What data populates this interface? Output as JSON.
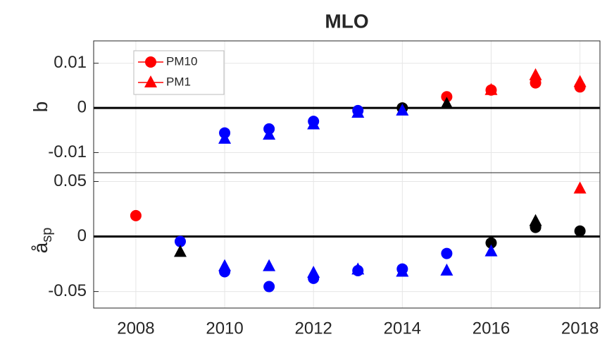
{
  "chart_data": [
    {
      "type": "scatter",
      "title": "MLO",
      "ylabel": "b",
      "x": [
        2008,
        2009,
        2010,
        2011,
        2012,
        2013,
        2014,
        2015,
        2016,
        2017,
        2018
      ],
      "xlim": [
        2007.05,
        2018.45
      ],
      "xticks": [
        2008,
        2010,
        2012,
        2014,
        2016,
        2018
      ],
      "ylim": [
        -0.0145,
        0.015
      ],
      "yticks": [
        -0.01,
        0,
        0.01
      ],
      "grid": true,
      "zero_line": true,
      "legend": "upper left",
      "series": [
        {
          "name": "PM10",
          "marker": "circle",
          "color": "#ff0000",
          "colors": [
            null,
            null,
            "#0000ff",
            "#0000ff",
            "#0000ff",
            "#0000ff",
            "#000000",
            "#ff0000",
            "#ff0000",
            "#ff0000",
            "#ff0000"
          ],
          "values": [
            null,
            null,
            -0.0056,
            -0.0047,
            -0.003,
            -0.0006,
            0.0,
            0.0025,
            0.004,
            0.0056,
            0.0047
          ]
        },
        {
          "name": "PM1",
          "marker": "triangle",
          "color": "#ff0000",
          "colors": [
            null,
            null,
            "#0000ff",
            "#0000ff",
            "#0000ff",
            "#0000ff",
            "#0000ff",
            "#000000",
            "#ff0000",
            "#ff0000",
            "#ff0000"
          ],
          "values": [
            null,
            null,
            -0.0069,
            -0.006,
            -0.0037,
            -0.0011,
            -0.0006,
            0.0009,
            0.004,
            0.0073,
            0.0058
          ]
        }
      ]
    },
    {
      "type": "scatter",
      "ylabel": "å",
      "ylabel_subscript": "sp",
      "x": [
        2008,
        2009,
        2010,
        2011,
        2012,
        2013,
        2014,
        2015,
        2016,
        2017,
        2018
      ],
      "xlim": [
        2007.05,
        2018.45
      ],
      "xticks": [
        2008,
        2010,
        2012,
        2014,
        2016,
        2018
      ],
      "ylim": [
        -0.065,
        0.058
      ],
      "yticks": [
        -0.05,
        0,
        0.05
      ],
      "grid": true,
      "zero_line": true,
      "series": [
        {
          "marker": "circle",
          "colors": [
            "#ff0000",
            "#0000ff",
            "#0000ff",
            "#0000ff",
            "#0000ff",
            "#0000ff",
            "#0000ff",
            "#0000ff",
            "#000000",
            "#000000",
            "#000000"
          ],
          "values": [
            0.019,
            -0.0045,
            -0.032,
            -0.0455,
            -0.038,
            -0.031,
            -0.0295,
            -0.0154,
            -0.0058,
            0.0083,
            0.005
          ]
        },
        {
          "marker": "triangle",
          "colors": [
            null,
            "#000000",
            "#0000ff",
            "#0000ff",
            "#0000ff",
            "#0000ff",
            "#0000ff",
            "#0000ff",
            "#0000ff",
            "#000000",
            "#ff0000"
          ],
          "values": [
            null,
            -0.014,
            -0.027,
            -0.027,
            -0.033,
            -0.03,
            -0.032,
            -0.031,
            -0.0135,
            0.014,
            0.0436
          ]
        }
      ]
    }
  ]
}
